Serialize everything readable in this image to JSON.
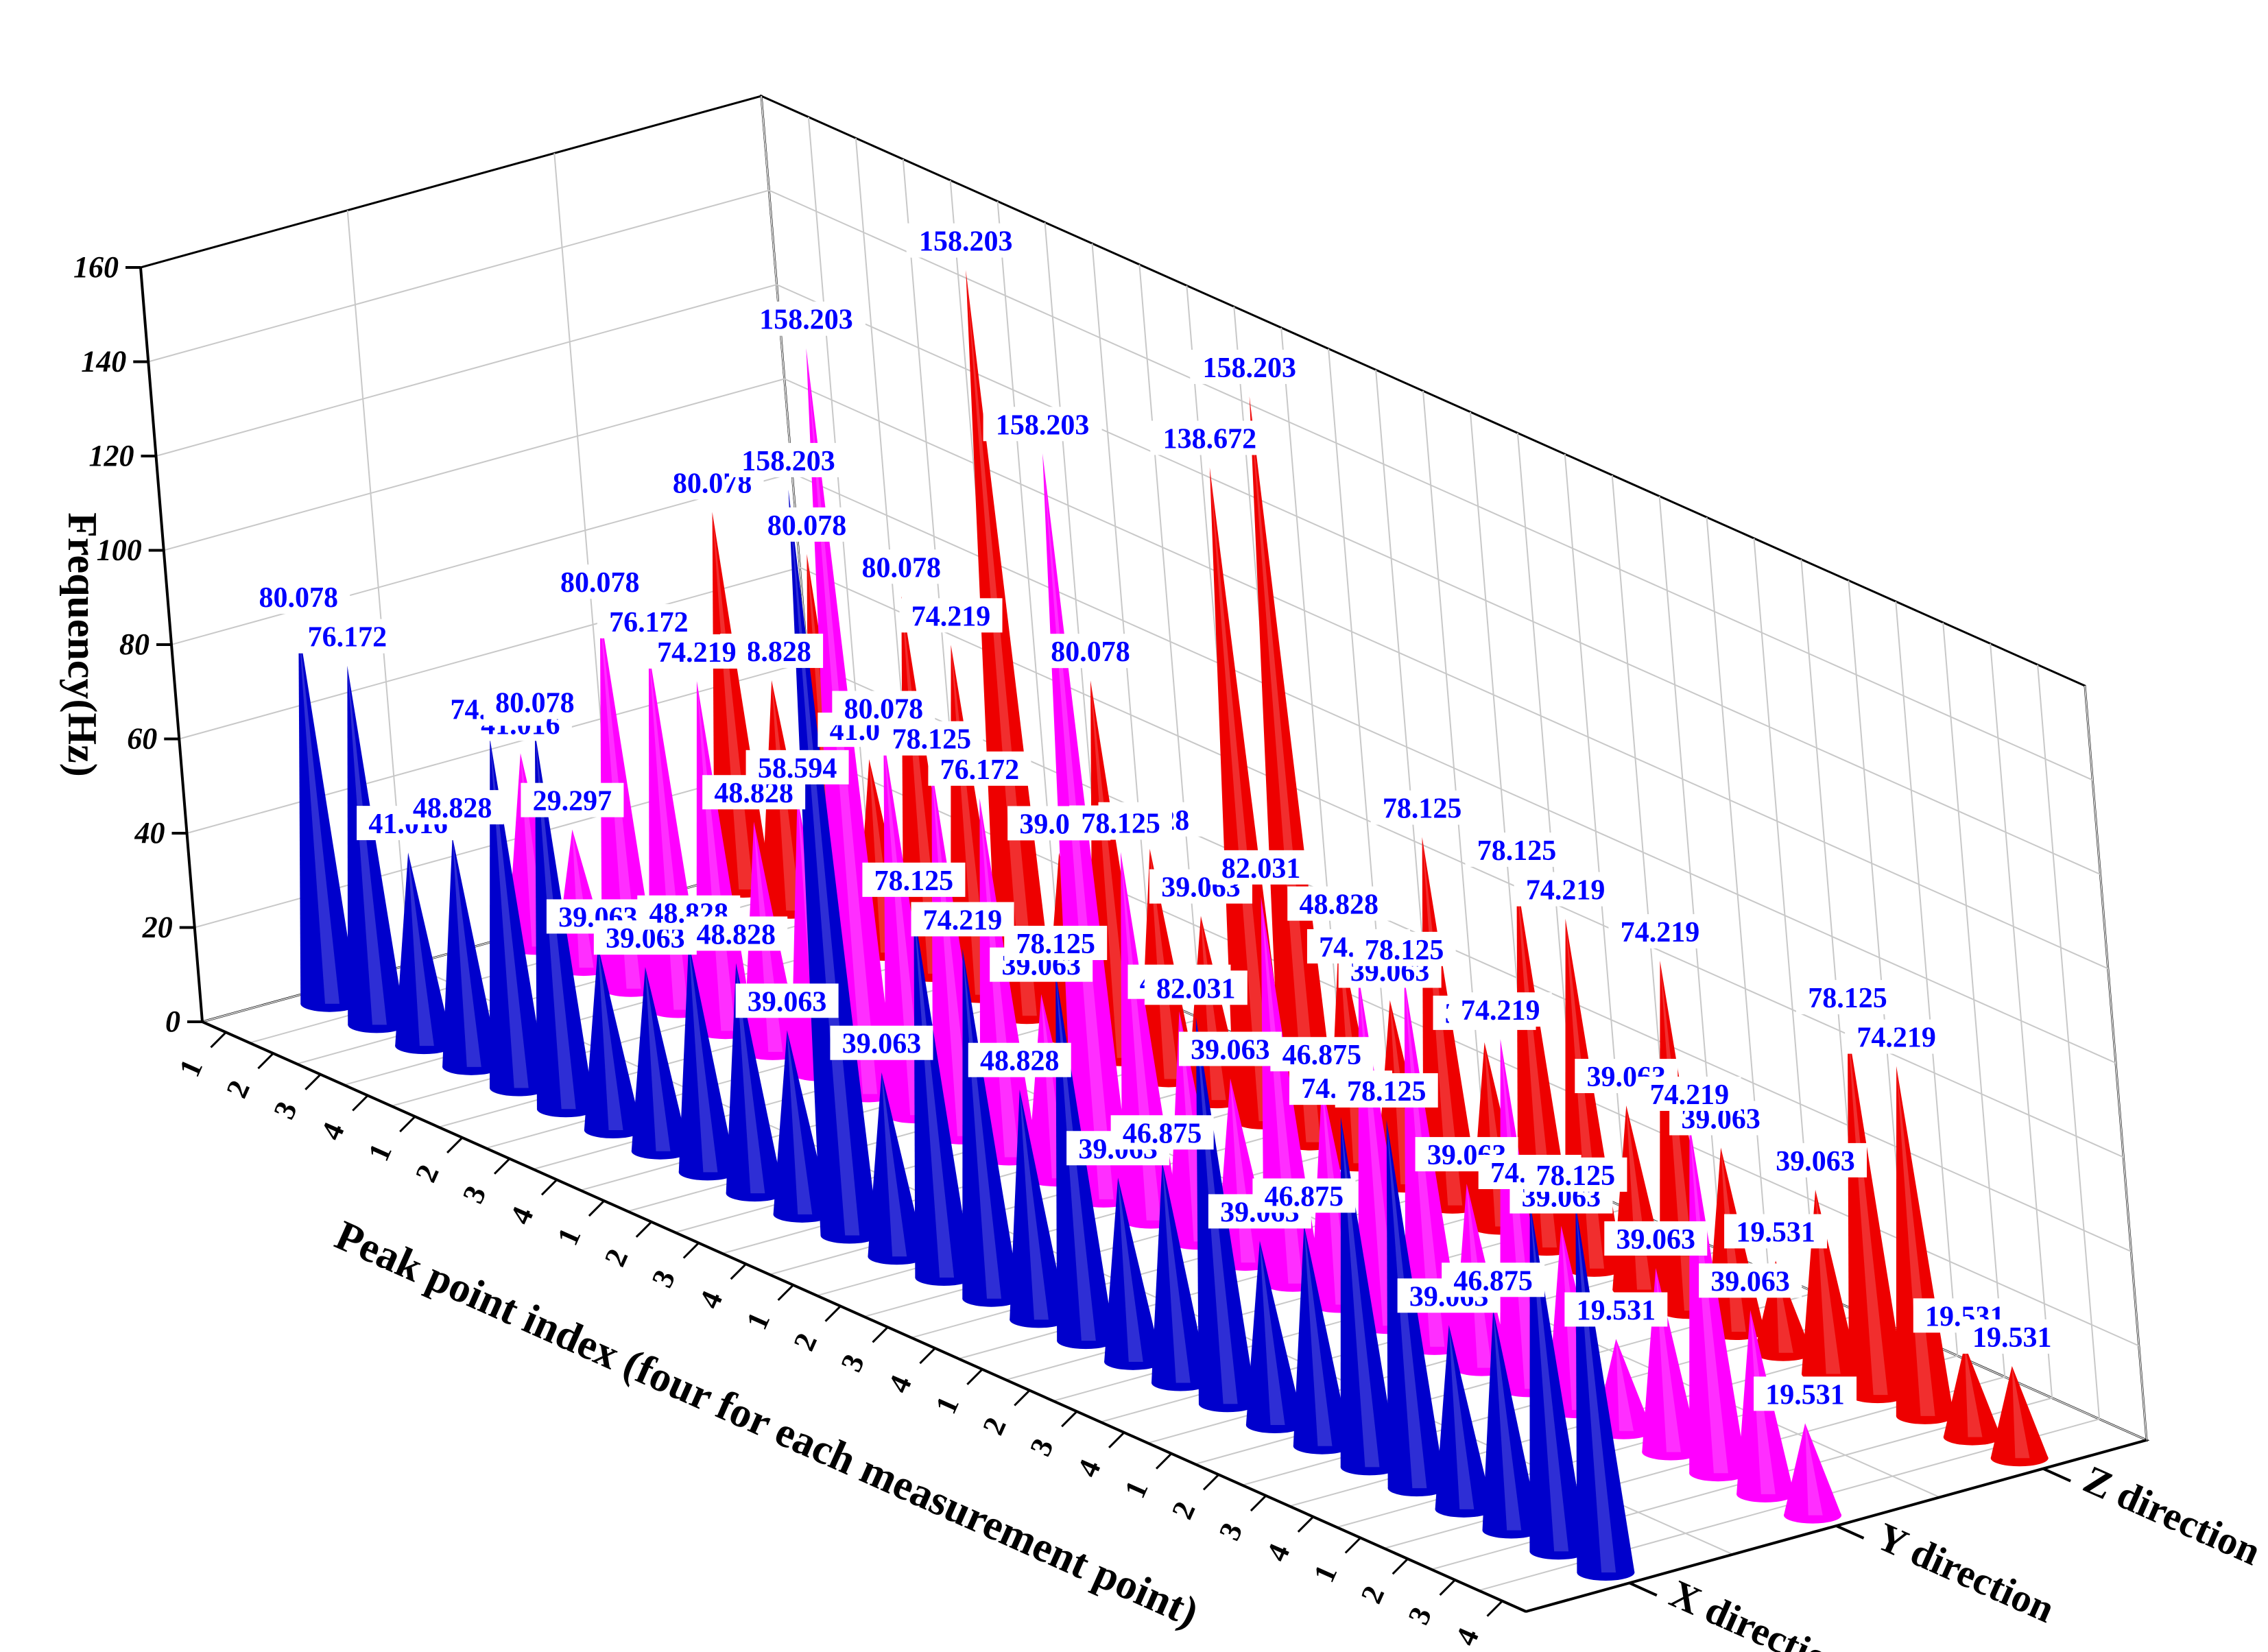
{
  "chart_data": {
    "type": "bar",
    "subtype": "3d-cone",
    "title": "",
    "xlabel": "Peak point index (four for each measurement point)",
    "ylabel": "Frequency(Hz)",
    "zlim": [
      0,
      160
    ],
    "z_ticks": [
      "0",
      "20",
      "40",
      "60",
      "80",
      "100",
      "120",
      "140",
      "160"
    ],
    "categories": [
      "1",
      "2",
      "3",
      "4",
      "1",
      "2",
      "3",
      "4",
      "1",
      "2",
      "3",
      "4",
      "1",
      "2",
      "3",
      "4",
      "1",
      "2",
      "3",
      "4",
      "1",
      "2",
      "3",
      "4",
      "1",
      "2",
      "3",
      "4"
    ],
    "grid": true,
    "label_color": "#0000ff",
    "series": [
      {
        "name": "X direction",
        "color": "#0000cc",
        "values": [
          80.078,
          76.172,
          41.016,
          48.828,
          74.219,
          80.078,
          39.063,
          39.063,
          48.828,
          48.828,
          39.063,
          158.203,
          39.063,
          78.125,
          74.219,
          48.828,
          78.125,
          39.063,
          46.875,
          82.031,
          39.063,
          46.875,
          74.219,
          78.125,
          39.063,
          46.875,
          74.219,
          78.125
        ],
        "labels": [
          "80.078",
          "76.172",
          "41.016",
          "48.828",
          "74.219",
          "80.078",
          "39.063",
          "39.063",
          "48.828",
          "48.828",
          "39.063",
          "158.203",
          "39.063",
          "78.125",
          "74.219",
          "48.828",
          "78.125",
          "39.063",
          "46.875",
          "82.031",
          "39.063",
          "46.875",
          "74.219",
          "78.125",
          "39.063",
          "46.875",
          "74.219",
          "78.125"
        ]
      },
      {
        "name": "Y direction",
        "color": "#ff00ff",
        "values": [
          41.016,
          29.297,
          80.078,
          76.172,
          74.219,
          48.828,
          58.594,
          158.203,
          80.078,
          78.125,
          76.172,
          39.063,
          158.203,
          78.125,
          48.828,
          39.063,
          82.031,
          46.875,
          74.219,
          78.125,
          39.063,
          74.219,
          39.063,
          19.531,
          39.063,
          74.219,
          39.063,
          19.531
        ],
        "labels": [
          "41.016",
          "29.297",
          "80.078",
          "76.172",
          "74.219",
          "48.828",
          "58.594",
          "158.203",
          "80.078",
          "78.125",
          "76.172",
          "39.063",
          "158.203",
          "78.125",
          "48.828",
          "39.063",
          "82.031",
          "46.875",
          "74.219",
          "78.125",
          "39.063",
          "74.219",
          "39.063",
          "19.531",
          "39.063",
          "74.219",
          "39.063",
          "19.531"
        ]
      },
      {
        "name": "Z direction",
        "color": "#ee0000",
        "values": [
          80.078,
          48.828,
          80.078,
          41.016,
          80.078,
          74.219,
          158.203,
          39.063,
          80.078,
          48.828,
          39.063,
          138.672,
          158.203,
          48.828,
          39.063,
          78.125,
          39.063,
          78.125,
          74.219,
          39.063,
          74.219,
          39.063,
          19.531,
          39.063,
          78.125,
          74.219,
          19.531,
          19.531
        ],
        "labels": [
          "80.078",
          "48.828",
          "80.078",
          "41.016",
          "80.078",
          "74.219",
          "158.203",
          "39.063",
          "80.078",
          "48.828",
          "39.063",
          "138.672",
          "158.203",
          "48.828",
          "39.063",
          "78.125",
          "39.063",
          "78.125",
          "74.219",
          "39.063",
          "74.219",
          "39.063",
          "19.531",
          "39.063",
          "78.125",
          "74.219",
          "19.531",
          "19.531"
        ]
      }
    ]
  }
}
